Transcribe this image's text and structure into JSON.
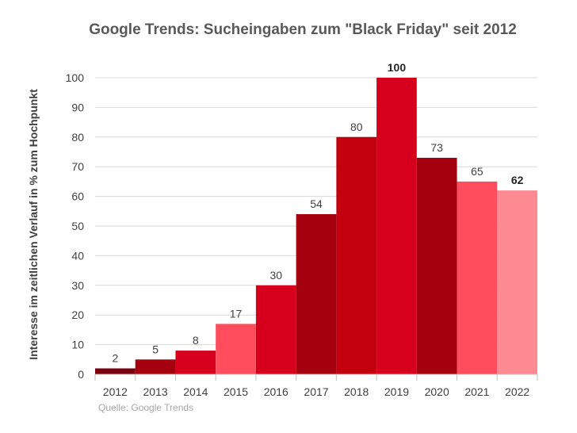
{
  "chart_data": {
    "type": "bar",
    "title": "Google Trends: Sucheingaben zum \"Black Friday\" seit 2012",
    "xlabel": "",
    "ylabel": "Interesse im zeitlichen Verlauf in % zum Hochpunkt",
    "categories": [
      "2012",
      "2013",
      "2014",
      "2015",
      "2016",
      "2017",
      "2018",
      "2019",
      "2020",
      "2021",
      "2022"
    ],
    "values": [
      2,
      5,
      8,
      17,
      30,
      54,
      80,
      100,
      73,
      65,
      62
    ],
    "bar_colors": [
      "#7a0010",
      "#a5000f",
      "#d6001c",
      "#ff4d5e",
      "#d6001c",
      "#a5000f",
      "#c4000f",
      "#d6001c",
      "#a5000f",
      "#ff4d5e",
      "#ff8a93"
    ],
    "bold_labels": [
      "2019",
      "2022"
    ],
    "ylim": [
      0,
      100
    ],
    "yticks": [
      0,
      10,
      20,
      30,
      40,
      50,
      60,
      70,
      80,
      90,
      100
    ],
    "grid": true,
    "source": "Quelle: Google Trends"
  }
}
